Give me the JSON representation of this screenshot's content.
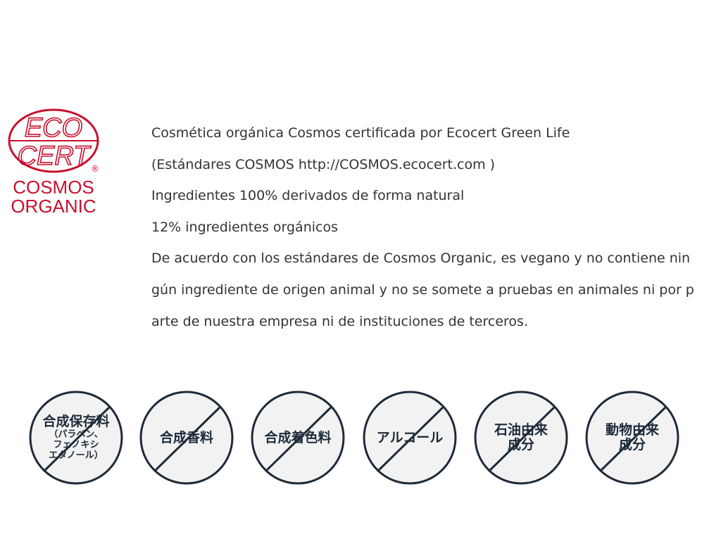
{
  "logo": {
    "top": "ECO",
    "middle": "CERT",
    "registered": "®",
    "line1": "COSMOS",
    "line2": "ORGANIC",
    "color": "#c8102e"
  },
  "description": [
    "Cosmética orgánica Cosmos certificada por Ecocert Green Life",
    "(Estándares COSMOS http://COSMOS.ecocert.com )",
    "Ingredientes 100% derivados de forma natural",
    "12% ingredientes orgánicos",
    "De acuerdo con los estándares de Cosmos Organic, es vegano y no contiene nin",
    "gún ingrediente de origen animal y no se somete a pruebas en animales ni por p",
    "arte de nuestra empresa ni de instituciones de terceros."
  ],
  "badges": [
    {
      "label": "合成保存料",
      "sub": [
        "（パラベン、",
        "フェノキシ",
        "エタノール）"
      ]
    },
    {
      "label": "合成香料"
    },
    {
      "label": "合成着色料"
    },
    {
      "label": "アルコール"
    },
    {
      "label": "石油由来",
      "label2": "成分"
    },
    {
      "label": "動物由来",
      "label2": "成分"
    }
  ],
  "colors": {
    "badge_stroke": "#1d2b3a",
    "badge_fill": "#f2f2f2",
    "text": "#333333"
  }
}
